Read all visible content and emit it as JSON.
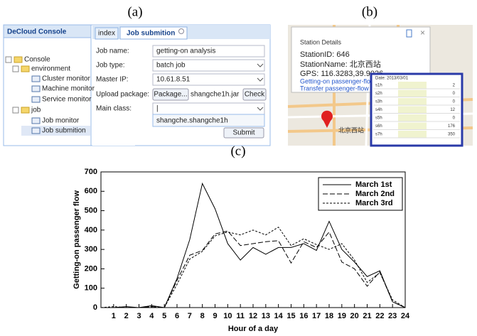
{
  "panel_labels": [
    "(a)",
    "(b)",
    "(c)"
  ],
  "console": {
    "title": "DeCloud Console",
    "tree": [
      "Console",
      "environment",
      "Cluster monitor",
      "Machine monitor",
      "Service monitor",
      "job",
      "Job monitor",
      "Job submition"
    ],
    "tabs": [
      "index",
      "Job submition"
    ],
    "form": {
      "labels": [
        "Job name:",
        "Job type:",
        "Master IP:",
        "Upload package:",
        "Main class:"
      ],
      "job_name": "getting-on analysis",
      "job_type": "batch job",
      "master_ip": "10.61.8.51",
      "package_button": "Package...",
      "package_file": "shangche1h.jar",
      "check_button": "Check",
      "main_class": "|",
      "main_class_option": "shangche.shangche1h",
      "submit": "Submit"
    }
  },
  "station": {
    "title": "Station Details",
    "id": "StationID: 646",
    "name": "StationName: 北京西站",
    "gps": "GPS: 116.3283,39.9026",
    "links": [
      "Getting-on passenger-flow",
      "Transfer passenger-flow"
    ],
    "date": "Date: 2013/03/01",
    "table": [
      [
        "s1h",
        2
      ],
      [
        "s2h",
        0
      ],
      [
        "s3h",
        0
      ],
      [
        "s4h",
        12
      ],
      [
        "s5h",
        0
      ],
      [
        "s6h",
        176
      ],
      [
        "s7h",
        350
      ]
    ],
    "map_label": "北京西站"
  },
  "chart_data": {
    "type": "line",
    "x_label": "Hour of a day",
    "y_label": "Getting-on passenger flow",
    "x": [
      0,
      1,
      2,
      3,
      4,
      5,
      6,
      7,
      8,
      9,
      10,
      11,
      12,
      13,
      14,
      15,
      16,
      17,
      18,
      19,
      20,
      21,
      22,
      23,
      24
    ],
    "series": [
      {
        "name": "March 1st",
        "color": "#000000",
        "line_style": "solid",
        "values": [
          0,
          0,
          5,
          0,
          10,
          0,
          150,
          350,
          640,
          510,
          330,
          245,
          310,
          275,
          310,
          310,
          330,
          295,
          445,
          300,
          235,
          160,
          190,
          30,
          0
        ]
      },
      {
        "name": "March 2nd",
        "color": "#000000",
        "line_style": "dashed",
        "values": [
          0,
          0,
          0,
          0,
          5,
          0,
          140,
          270,
          295,
          380,
          395,
          320,
          330,
          340,
          345,
          230,
          340,
          310,
          390,
          235,
          200,
          110,
          185,
          30,
          0
        ]
      },
      {
        "name": "March 3rd",
        "color": "#000000",
        "line_style": "dotted",
        "values": [
          0,
          5,
          0,
          0,
          5,
          0,
          120,
          250,
          290,
          370,
          390,
          375,
          400,
          375,
          415,
          320,
          355,
          325,
          300,
          330,
          245,
          130,
          180,
          40,
          0
        ]
      }
    ],
    "xlim": [
      0,
      24
    ],
    "xticks": [
      1,
      2,
      3,
      4,
      5,
      6,
      7,
      8,
      9,
      10,
      11,
      12,
      13,
      14,
      15,
      16,
      17,
      18,
      19,
      20,
      21,
      22,
      23,
      24
    ],
    "ylim": [
      0,
      700
    ],
    "yticks": [
      0,
      100,
      200,
      300,
      400,
      500,
      600,
      700
    ],
    "legend": "upper right"
  }
}
